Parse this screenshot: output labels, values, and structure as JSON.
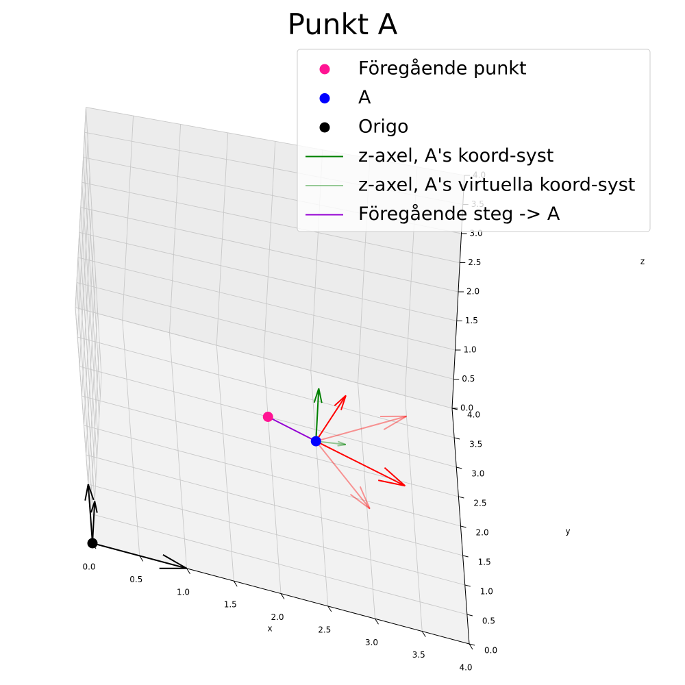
{
  "chart_data": {
    "type": "scatter",
    "title": "Punkt A",
    "xlabel": "x",
    "ylabel": "y",
    "zlabel": "z",
    "xlim": [
      0,
      4
    ],
    "ylim": [
      0,
      4
    ],
    "zlim": [
      0,
      4
    ],
    "grid": true,
    "legend_position": "top-right",
    "x_ticks": [
      "0.0",
      "0.5",
      "1.0",
      "1.5",
      "2.0",
      "2.5",
      "3.0",
      "3.5",
      "4.0"
    ],
    "y_ticks": [
      "0.0",
      "0.5",
      "1.0",
      "1.5",
      "2.0",
      "2.5",
      "3.0",
      "3.5",
      "4.0"
    ],
    "z_ticks": [
      "0.0",
      "0.5",
      "1.0",
      "1.5",
      "2.0",
      "2.5",
      "3.0",
      "3.5",
      "4.0"
    ],
    "legend": [
      {
        "label": "Föregående punkt",
        "kind": "marker",
        "color": "#ff1493"
      },
      {
        "label": "A",
        "kind": "marker",
        "color": "#0000ff"
      },
      {
        "label": "Origo",
        "kind": "marker",
        "color": "#000000"
      },
      {
        "label": "z-axel, A's koord-syst",
        "kind": "line",
        "color": "#008000",
        "opacity": 1
      },
      {
        "label": "z-axel, A's virtuella koord-syst",
        "kind": "line",
        "color": "#008000",
        "opacity": 0.4
      },
      {
        "label": "Föregående steg -> A",
        "kind": "line",
        "color": "#9400d3",
        "opacity": 1
      }
    ],
    "points": [
      {
        "name": "Föregående punkt",
        "x": 2.0,
        "y": 3.0,
        "z": 0.0,
        "color": "#ff1493"
      },
      {
        "name": "A",
        "x": 2.5,
        "y": 2.8,
        "z": 0.0,
        "color": "#0000ff"
      },
      {
        "name": "Origo",
        "x": 0.0,
        "y": 0.0,
        "z": 0.0,
        "color": "#000000"
      }
    ],
    "arrows": [
      {
        "name": "origo-x-axis",
        "from": [
          0,
          0,
          0
        ],
        "to": [
          1,
          0,
          0
        ],
        "color": "#000000",
        "opacity": 1
      },
      {
        "name": "origo-y-axis",
        "from": [
          0,
          0,
          0
        ],
        "to": [
          0,
          1,
          0
        ],
        "color": "#000000",
        "opacity": 1
      },
      {
        "name": "origo-z-axis",
        "from": [
          0,
          0,
          0
        ],
        "to": [
          0,
          0,
          1
        ],
        "color": "#000000",
        "opacity": 1
      },
      {
        "name": "a-x-axis",
        "from": [
          2.5,
          2.8,
          0
        ],
        "to": [
          3.43,
          2.44,
          0
        ],
        "color": "#ff0000",
        "opacity": 1
      },
      {
        "name": "a-y-axis",
        "from": [
          2.5,
          2.8,
          0
        ],
        "to": [
          2.86,
          3.73,
          0
        ],
        "color": "#ff0000",
        "opacity": 1
      },
      {
        "name": "a-z-axis",
        "from": [
          2.5,
          2.8,
          0
        ],
        "to": [
          2.5,
          2.8,
          1
        ],
        "color": "#008000",
        "opacity": 1
      },
      {
        "name": "a-virtual-x-axis",
        "from": [
          2.5,
          2.8,
          0
        ],
        "to": [
          3.5,
          3.65,
          0
        ],
        "color": "#ff0000",
        "opacity": 0.4
      },
      {
        "name": "a-virtual-y-axis",
        "from": [
          2.5,
          2.8,
          0
        ],
        "to": [
          3.03,
          1.88,
          0
        ],
        "color": "#ff0000",
        "opacity": 0.4
      },
      {
        "name": "a-virtual-z-axis",
        "from": [
          2.5,
          2.8,
          0
        ],
        "to": [
          2.82,
          2.88,
          0
        ],
        "color": "#008000",
        "opacity": 0.4
      }
    ],
    "segments": [
      {
        "name": "previous-step-to-a",
        "from": [
          2.0,
          3.0,
          0
        ],
        "to": [
          2.5,
          2.8,
          0
        ],
        "color": "#9400d3"
      }
    ]
  }
}
